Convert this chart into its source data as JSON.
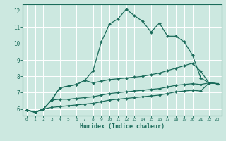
{
  "xlabel": "Humidex (Indice chaleur)",
  "ylabel": "",
  "bg_color": "#cce8e0",
  "grid_color": "#aad4cc",
  "line_color": "#1a6b5a",
  "xlim": [
    -0.5,
    23.5
  ],
  "ylim": [
    5.6,
    12.4
  ],
  "xticks": [
    0,
    1,
    2,
    3,
    4,
    5,
    6,
    7,
    8,
    9,
    10,
    11,
    12,
    13,
    14,
    15,
    16,
    17,
    18,
    19,
    20,
    21,
    22,
    23
  ],
  "yticks": [
    6,
    7,
    8,
    9,
    10,
    11,
    12
  ],
  "series": [
    [
      5.95,
      5.8,
      6.0,
      6.55,
      7.3,
      7.4,
      7.5,
      7.75,
      8.35,
      10.1,
      11.2,
      11.5,
      12.1,
      11.7,
      11.35,
      10.7,
      11.25,
      10.45,
      10.45,
      10.1,
      9.3,
      7.9,
      7.6,
      7.55
    ],
    [
      5.95,
      5.8,
      6.0,
      6.55,
      7.3,
      7.4,
      7.5,
      7.75,
      7.6,
      7.7,
      7.8,
      7.85,
      7.9,
      7.95,
      8.0,
      8.1,
      8.2,
      8.35,
      8.5,
      8.65,
      8.8,
      8.3,
      7.6,
      7.55
    ],
    [
      5.95,
      5.8,
      6.0,
      6.55,
      6.6,
      6.6,
      6.65,
      6.7,
      6.75,
      6.85,
      6.95,
      7.0,
      7.05,
      7.1,
      7.15,
      7.2,
      7.25,
      7.35,
      7.45,
      7.5,
      7.55,
      7.5,
      7.6,
      7.55
    ],
    [
      5.95,
      5.8,
      6.0,
      6.1,
      6.15,
      6.2,
      6.25,
      6.3,
      6.35,
      6.45,
      6.55,
      6.6,
      6.65,
      6.7,
      6.75,
      6.8,
      6.85,
      6.95,
      7.05,
      7.1,
      7.15,
      7.1,
      7.6,
      7.55
    ]
  ]
}
